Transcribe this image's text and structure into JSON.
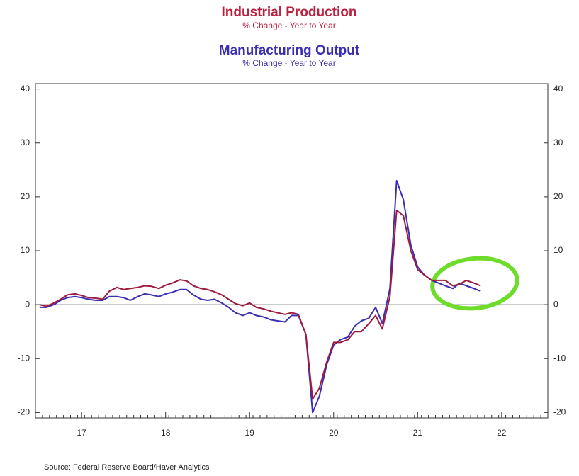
{
  "chart_data": {
    "type": "line",
    "title": "Industrial Production",
    "subtitle": "% Change - Year to Year",
    "title2": "Manufacturing Output",
    "subtitle2": "% Change - Year to Year",
    "source": "Source:  Federal Reserve Board/Haver Analytics",
    "x": [
      2017.0,
      2017.08,
      2017.17,
      2017.25,
      2017.33,
      2017.42,
      2017.5,
      2017.58,
      2017.67,
      2017.75,
      2017.83,
      2017.92,
      2018.0,
      2018.08,
      2018.17,
      2018.25,
      2018.33,
      2018.42,
      2018.5,
      2018.58,
      2018.67,
      2018.75,
      2018.83,
      2018.92,
      2019.0,
      2019.08,
      2019.17,
      2019.25,
      2019.33,
      2019.42,
      2019.5,
      2019.58,
      2019.67,
      2019.75,
      2019.83,
      2019.92,
      2020.0,
      2020.08,
      2020.17,
      2020.25,
      2020.33,
      2020.42,
      2020.5,
      2020.58,
      2020.67,
      2020.75,
      2020.83,
      2020.92,
      2021.0,
      2021.08,
      2021.17,
      2021.25,
      2021.33,
      2021.42,
      2021.5,
      2021.58,
      2021.67,
      2021.75,
      2021.83,
      2021.92,
      2022.0,
      2022.08,
      2022.17,
      2022.25
    ],
    "series": [
      {
        "name": "Industrial Production",
        "color": "#9e1a3f",
        "values": [
          0,
          -0.3,
          0.3,
          1.0,
          1.8,
          2.0,
          1.7,
          1.3,
          1.2,
          1.0,
          2.5,
          3.2,
          2.8,
          3.0,
          3.2,
          3.5,
          3.4,
          3.0,
          3.6,
          4.0,
          4.6,
          4.4,
          3.5,
          3.0,
          2.8,
          2.4,
          1.8,
          1.0,
          0.2,
          -0.2,
          0.3,
          -0.5,
          -0.8,
          -1.2,
          -1.5,
          -1.8,
          -1.5,
          -1.8,
          -5.5,
          -17.5,
          -15.5,
          -10.5,
          -7,
          -7,
          -6.5,
          -5,
          -5,
          -3.5,
          -2,
          -4.5,
          1.5,
          17.5,
          16.5,
          10,
          6.5,
          5.5,
          4.5,
          4.5,
          4.5,
          3.5,
          3.8,
          4.5,
          4.0,
          3.5
        ]
      },
      {
        "name": "Manufacturing Output",
        "color": "#3a2fb0",
        "values": [
          -0.5,
          -0.5,
          0,
          0.8,
          1.3,
          1.5,
          1.3,
          1.0,
          0.8,
          0.8,
          1.5,
          1.5,
          1.3,
          0.8,
          1.5,
          2.0,
          1.8,
          1.5,
          2.0,
          2.3,
          2.8,
          2.8,
          1.8,
          1.0,
          0.8,
          1.0,
          0.3,
          -0.5,
          -1.5,
          -2.0,
          -1.5,
          -2.0,
          -2.3,
          -2.8,
          -3.0,
          -3.2,
          -2.0,
          -2.0,
          -5.5,
          -20,
          -17,
          -11,
          -7.5,
          -6.5,
          -6,
          -4,
          -3,
          -2.5,
          -0.5,
          -3.5,
          3,
          23,
          19.5,
          11,
          7,
          5.5,
          4.5,
          4,
          3.5,
          3,
          4,
          3.5,
          3,
          2.5
        ]
      }
    ],
    "xlim": [
      2016.95,
      2023.05
    ],
    "xticks": [
      {
        "value": 2017.5,
        "label": "17"
      },
      {
        "value": 2018.5,
        "label": "18"
      },
      {
        "value": 2019.5,
        "label": "19"
      },
      {
        "value": 2020.5,
        "label": "20"
      },
      {
        "value": 2021.5,
        "label": "21"
      },
      {
        "value": 2022.5,
        "label": "22"
      }
    ],
    "ylim": [
      -21,
      41
    ],
    "yticks": [
      -20,
      -10,
      0,
      10,
      20,
      30,
      40
    ]
  }
}
